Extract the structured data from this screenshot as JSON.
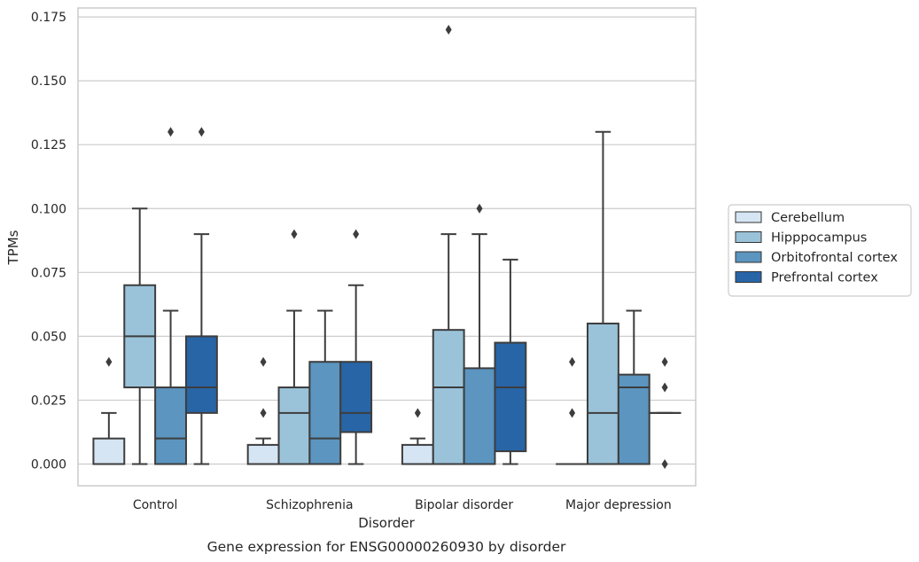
{
  "chart_data": {
    "type": "box",
    "caption": "Gene expression for ENSG00000260930 by disorder",
    "xlabel": "Disorder",
    "ylabel": "TPMs",
    "ylim": [
      -0.0085,
      0.1785
    ],
    "yticks": [
      0.0,
      0.025,
      0.05,
      0.075,
      0.1,
      0.125,
      0.15,
      0.175
    ],
    "ytick_labels": [
      "0.000",
      "0.025",
      "0.050",
      "0.075",
      "0.100",
      "0.125",
      "0.150",
      "0.175"
    ],
    "categories": [
      "Control",
      "Schizophrenia",
      "Bipolar disorder",
      "Major depression"
    ],
    "grid": true,
    "legend_position": "right",
    "series": [
      {
        "name": "Cerebellum",
        "color": "#d6e5f3",
        "boxes": [
          {
            "whislo": 0.0,
            "q1": 0.0,
            "med": 0.0,
            "q3": 0.01,
            "whishi": 0.02,
            "fliers": [
              0.04
            ]
          },
          {
            "whislo": 0.0,
            "q1": 0.0,
            "med": 0.0,
            "q3": 0.0075,
            "whishi": 0.01,
            "fliers": [
              0.02,
              0.04
            ]
          },
          {
            "whislo": 0.0,
            "q1": 0.0,
            "med": 0.0,
            "q3": 0.0075,
            "whishi": 0.01,
            "fliers": [
              0.02
            ]
          },
          {
            "whislo": 0.0,
            "q1": 0.0,
            "med": 0.0,
            "q3": 0.0,
            "whishi": 0.0,
            "fliers": [
              0.02,
              0.04
            ]
          }
        ]
      },
      {
        "name": "Hipppocampus",
        "color": "#9ac3da",
        "boxes": [
          {
            "whislo": 0.0,
            "q1": 0.03,
            "med": 0.05,
            "q3": 0.07,
            "whishi": 0.1,
            "fliers": []
          },
          {
            "whislo": 0.0,
            "q1": 0.0,
            "med": 0.02,
            "q3": 0.03,
            "whishi": 0.06,
            "fliers": [
              0.09
            ]
          },
          {
            "whislo": 0.0,
            "q1": 0.0,
            "med": 0.03,
            "q3": 0.0525,
            "whishi": 0.09,
            "fliers": [
              0.17
            ]
          },
          {
            "whislo": 0.0,
            "q1": 0.0,
            "med": 0.02,
            "q3": 0.055,
            "whishi": 0.13,
            "fliers": []
          }
        ]
      },
      {
        "name": "Orbitofrontal cortex",
        "color": "#5b95c0",
        "boxes": [
          {
            "whislo": 0.0,
            "q1": 0.0,
            "med": 0.01,
            "q3": 0.03,
            "whishi": 0.06,
            "fliers": [
              0.13
            ]
          },
          {
            "whislo": 0.0,
            "q1": 0.0,
            "med": 0.01,
            "q3": 0.04,
            "whishi": 0.06,
            "fliers": []
          },
          {
            "whislo": 0.0,
            "q1": 0.0,
            "med": 0.0,
            "q3": 0.0375,
            "whishi": 0.09,
            "fliers": [
              0.1
            ]
          },
          {
            "whislo": 0.0,
            "q1": 0.0,
            "med": 0.03,
            "q3": 0.035,
            "whishi": 0.06,
            "fliers": []
          }
        ]
      },
      {
        "name": "Prefrontal cortex",
        "color": "#2765a7",
        "boxes": [
          {
            "whislo": 0.0,
            "q1": 0.02,
            "med": 0.03,
            "q3": 0.05,
            "whishi": 0.09,
            "fliers": [
              0.13
            ]
          },
          {
            "whislo": 0.0,
            "q1": 0.0125,
            "med": 0.02,
            "q3": 0.04,
            "whishi": 0.07,
            "fliers": [
              0.09
            ]
          },
          {
            "whislo": 0.0,
            "q1": 0.005,
            "med": 0.03,
            "q3": 0.0475,
            "whishi": 0.08,
            "fliers": []
          },
          {
            "whislo": 0.02,
            "q1": 0.02,
            "med": 0.02,
            "q3": 0.02,
            "whishi": 0.02,
            "fliers": [
              0.0,
              0.03,
              0.04
            ]
          }
        ]
      }
    ]
  }
}
